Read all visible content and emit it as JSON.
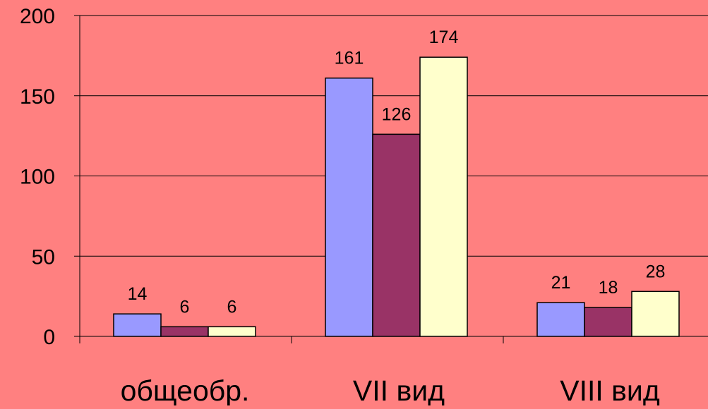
{
  "chart_data": {
    "type": "bar",
    "categories": [
      "общеобр.",
      "VII вид",
      "VIII вид"
    ],
    "series": [
      {
        "values": [
          14,
          161,
          21
        ],
        "color": "#9999FF"
      },
      {
        "values": [
          6,
          126,
          18
        ],
        "color": "#993366"
      },
      {
        "values": [
          6,
          174,
          28
        ],
        "color": "#FFFFCC"
      }
    ],
    "ylim": [
      0,
      200
    ],
    "yticks": [
      0,
      50,
      100,
      150,
      200
    ],
    "grid": true,
    "background_color": "#FF8080",
    "title": "",
    "xlabel": "",
    "ylabel": ""
  }
}
